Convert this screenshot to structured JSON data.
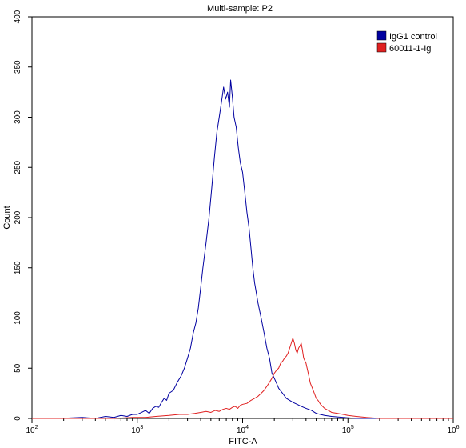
{
  "chart_data": {
    "type": "line",
    "title": "Multi-sample: P2",
    "xlabel": "FITC-A",
    "ylabel": "Count",
    "x_scale": "log",
    "xlim": [
      100,
      1000000
    ],
    "ylim": [
      0,
      400
    ],
    "x_ticks": [
      {
        "value": 100,
        "base": "10",
        "exp": "2"
      },
      {
        "value": 1000,
        "base": "10",
        "exp": "3"
      },
      {
        "value": 10000,
        "base": "10",
        "exp": "4"
      },
      {
        "value": 100000,
        "base": "10",
        "exp": "5"
      },
      {
        "value": 1000000,
        "base": "10",
        "exp": "6"
      }
    ],
    "y_ticks": [
      0,
      50,
      100,
      150,
      200,
      250,
      300,
      350,
      400
    ],
    "legend_position": "top-right",
    "grid": false,
    "series": [
      {
        "name": "IgG1 control",
        "color": "#0000a0",
        "points": [
          [
            100,
            0
          ],
          [
            180,
            0
          ],
          [
            300,
            1
          ],
          [
            400,
            0
          ],
          [
            500,
            2
          ],
          [
            600,
            1
          ],
          [
            700,
            3
          ],
          [
            800,
            2
          ],
          [
            900,
            4
          ],
          [
            1000,
            4
          ],
          [
            1100,
            6
          ],
          [
            1200,
            8
          ],
          [
            1300,
            5
          ],
          [
            1400,
            10
          ],
          [
            1500,
            12
          ],
          [
            1600,
            11
          ],
          [
            1700,
            16
          ],
          [
            1800,
            20
          ],
          [
            1900,
            18
          ],
          [
            2000,
            25
          ],
          [
            2200,
            28
          ],
          [
            2400,
            36
          ],
          [
            2600,
            42
          ],
          [
            2800,
            50
          ],
          [
            3000,
            60
          ],
          [
            3200,
            70
          ],
          [
            3400,
            85
          ],
          [
            3600,
            95
          ],
          [
            3800,
            110
          ],
          [
            4000,
            130
          ],
          [
            4200,
            150
          ],
          [
            4500,
            175
          ],
          [
            4800,
            200
          ],
          [
            5100,
            230
          ],
          [
            5400,
            260
          ],
          [
            5700,
            285
          ],
          [
            6000,
            300
          ],
          [
            6300,
            315
          ],
          [
            6600,
            330
          ],
          [
            6900,
            318
          ],
          [
            7200,
            325
          ],
          [
            7500,
            310
          ],
          [
            7700,
            337
          ],
          [
            8000,
            320
          ],
          [
            8300,
            300
          ],
          [
            8700,
            290
          ],
          [
            9100,
            270
          ],
          [
            9500,
            255
          ],
          [
            10000,
            245
          ],
          [
            10500,
            225
          ],
          [
            11000,
            205
          ],
          [
            11500,
            190
          ],
          [
            12000,
            170
          ],
          [
            12500,
            150
          ],
          [
            13000,
            135
          ],
          [
            13500,
            125
          ],
          [
            14000,
            115
          ],
          [
            15000,
            100
          ],
          [
            16000,
            85
          ],
          [
            17000,
            70
          ],
          [
            18000,
            60
          ],
          [
            19000,
            45
          ],
          [
            20000,
            40
          ],
          [
            21000,
            35
          ],
          [
            22000,
            30
          ],
          [
            24000,
            25
          ],
          [
            26000,
            20
          ],
          [
            28000,
            18
          ],
          [
            30000,
            16
          ],
          [
            33000,
            14
          ],
          [
            36000,
            12
          ],
          [
            40000,
            10
          ],
          [
            45000,
            8
          ],
          [
            50000,
            5
          ],
          [
            60000,
            3
          ],
          [
            70000,
            2
          ],
          [
            90000,
            1
          ],
          [
            120000,
            0
          ],
          [
            1000000,
            0
          ]
        ]
      },
      {
        "name": "60011-1-Ig",
        "color": "#e02020",
        "points": [
          [
            100,
            0
          ],
          [
            600,
            0
          ],
          [
            900,
            1
          ],
          [
            1200,
            1
          ],
          [
            1500,
            2
          ],
          [
            2000,
            3
          ],
          [
            2500,
            4
          ],
          [
            3000,
            4
          ],
          [
            3500,
            5
          ],
          [
            4000,
            6
          ],
          [
            4500,
            7
          ],
          [
            5000,
            6
          ],
          [
            5500,
            8
          ],
          [
            6000,
            7
          ],
          [
            6500,
            9
          ],
          [
            7000,
            10
          ],
          [
            7500,
            9
          ],
          [
            8000,
            11
          ],
          [
            8500,
            12
          ],
          [
            9000,
            10
          ],
          [
            9500,
            13
          ],
          [
            10000,
            14
          ],
          [
            11000,
            15
          ],
          [
            12000,
            18
          ],
          [
            13000,
            20
          ],
          [
            14000,
            22
          ],
          [
            15000,
            25
          ],
          [
            16000,
            28
          ],
          [
            17000,
            32
          ],
          [
            18000,
            36
          ],
          [
            19000,
            40
          ],
          [
            20000,
            45
          ],
          [
            21000,
            48
          ],
          [
            22000,
            50
          ],
          [
            23000,
            55
          ],
          [
            24000,
            57
          ],
          [
            25000,
            60
          ],
          [
            26000,
            62
          ],
          [
            27000,
            65
          ],
          [
            28000,
            70
          ],
          [
            29000,
            75
          ],
          [
            30000,
            80
          ],
          [
            31000,
            75
          ],
          [
            32000,
            68
          ],
          [
            33000,
            65
          ],
          [
            34000,
            70
          ],
          [
            35000,
            72
          ],
          [
            36000,
            75
          ],
          [
            37000,
            68
          ],
          [
            38000,
            60
          ],
          [
            40000,
            55
          ],
          [
            42000,
            45
          ],
          [
            44000,
            35
          ],
          [
            46000,
            30
          ],
          [
            48000,
            25
          ],
          [
            50000,
            20
          ],
          [
            52000,
            18
          ],
          [
            55000,
            14
          ],
          [
            60000,
            10
          ],
          [
            65000,
            8
          ],
          [
            70000,
            6
          ],
          [
            80000,
            5
          ],
          [
            90000,
            4
          ],
          [
            100000,
            3
          ],
          [
            120000,
            2
          ],
          [
            150000,
            1
          ],
          [
            200000,
            0
          ],
          [
            1000000,
            0
          ]
        ]
      }
    ]
  }
}
